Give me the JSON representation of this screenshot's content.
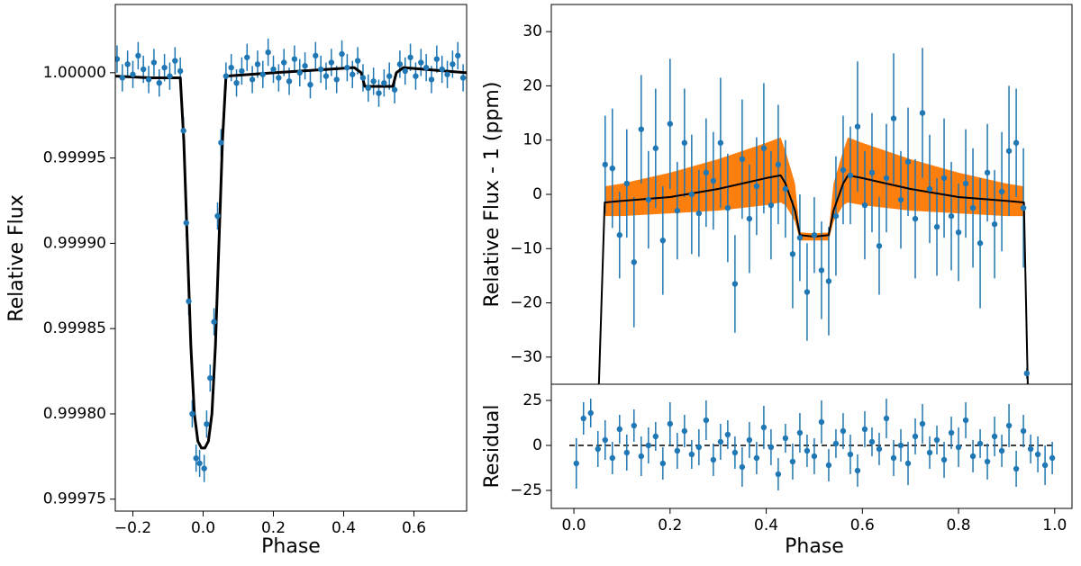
{
  "chart_data": [
    {
      "type": "errorbar",
      "xlabel": "Phase",
      "ylabel": "Relative Flux",
      "xlim": [
        -0.25,
        0.75
      ],
      "ylim": [
        0.999743,
        1.00004
      ],
      "xticks": [
        {
          "value": -0.2,
          "label": "−0.2"
        },
        {
          "value": 0,
          "label": "0.0"
        },
        0.2,
        0.4,
        0.6
      ],
      "yticks": [
        0.99975,
        {
          "value": 0.9998,
          "label": "0.99980"
        },
        0.99985,
        {
          "value": 0.9999,
          "label": "0.99990"
        },
        0.99995,
        {
          "value": 1,
          "label": "1.00000"
        }
      ],
      "color": "#1f77b4",
      "model_color": "#000000",
      "points": {
        "x": [
          -0.245,
          -0.23,
          -0.215,
          -0.2,
          -0.185,
          -0.17,
          -0.155,
          -0.14,
          -0.125,
          -0.11,
          -0.095,
          -0.08,
          -0.065,
          -0.056,
          -0.048,
          -0.041,
          -0.031,
          -0.02,
          -0.01,
          0.003,
          0.01,
          0.02,
          0.031,
          0.041,
          0.051,
          0.065,
          0.08,
          0.095,
          0.11,
          0.125,
          0.14,
          0.155,
          0.17,
          0.185,
          0.2,
          0.215,
          0.23,
          0.245,
          0.26,
          0.275,
          0.29,
          0.305,
          0.32,
          0.335,
          0.35,
          0.365,
          0.38,
          0.395,
          0.41,
          0.425,
          0.44,
          0.455,
          0.47,
          0.485,
          0.5,
          0.515,
          0.53,
          0.545,
          0.56,
          0.575,
          0.59,
          0.605,
          0.62,
          0.635,
          0.65,
          0.665,
          0.68,
          0.695,
          0.71,
          0.725,
          0.74
        ],
        "y": [
          1.000008,
          0.999997,
          1.000005,
          0.999999,
          1.00001,
          1.000002,
          0.999996,
          1.000006,
          0.999994,
          1.000003,
          0.999998,
          1.000007,
          1.000001,
          0.999966,
          0.999912,
          0.999866,
          0.9998,
          0.999774,
          0.999771,
          0.999768,
          0.999794,
          0.999821,
          0.999854,
          0.999916,
          0.999959,
          0.999998,
          1.000003,
          0.999994,
          1.000001,
          1.000009,
          0.999996,
          1.000005,
          0.999999,
          1.000012,
          1.000002,
          0.999997,
          1.000006,
          0.999995,
          1.000008,
          1.0,
          1.000004,
          0.999993,
          1.00001,
          1.000002,
          0.999998,
          1.000006,
          0.999996,
          1.000011,
          1.000003,
          0.999999,
          1.000007,
          0.999997,
          0.999991,
          0.999995,
          0.999988,
          0.999994,
          0.999998,
          0.99999,
          1.000005,
          1.000001,
          1.000009,
          0.999998,
          1.000006,
          1.000003,
          0.999996,
          1.000008,
          1.000002,
          0.999999,
          1.000005,
          1.00001,
          0.999997
        ]
      },
      "yerr": 8e-06,
      "model": {
        "x": [
          -0.25,
          -0.15,
          -0.065,
          -0.055,
          -0.045,
          -0.035,
          -0.025,
          -0.015,
          -0.005,
          0,
          0.005,
          0.015,
          0.025,
          0.035,
          0.045,
          0.055,
          0.065,
          0.2,
          0.43,
          0.45,
          0.46,
          0.54,
          0.55,
          0.57,
          0.75
        ],
        "y": [
          0.999998,
          0.999997,
          0.999997,
          0.99996,
          0.9999,
          0.99984,
          0.9998,
          0.999784,
          0.99978,
          0.99978,
          0.99978,
          0.999784,
          0.9998,
          0.99984,
          0.9999,
          0.99996,
          0.999998,
          1.0,
          1.000003,
          1.0,
          0.999992,
          0.999992,
          1.0,
          1.000003,
          1.0
        ]
      }
    },
    {
      "type": "errorbar",
      "ylabel": "Relative Flux - 1 (ppm)",
      "xlim": [
        -0.047,
        1.036
      ],
      "ylim": [
        -35,
        35
      ],
      "yticks": [
        {
          "value": -30,
          "label": "−30"
        },
        {
          "value": -20,
          "label": "−20"
        },
        {
          "value": -10,
          "label": "−10"
        },
        0,
        10,
        20,
        30
      ],
      "color": "#1f77b4",
      "model_color": "#000000",
      "band_color": "#ff7f0e",
      "points": {
        "x": [
          0.065,
          0.08,
          0.095,
          0.11,
          0.125,
          0.14,
          0.155,
          0.17,
          0.185,
          0.2,
          0.215,
          0.23,
          0.245,
          0.26,
          0.275,
          0.29,
          0.305,
          0.32,
          0.335,
          0.35,
          0.365,
          0.38,
          0.395,
          0.41,
          0.425,
          0.44,
          0.455,
          0.47,
          0.485,
          0.5,
          0.515,
          0.53,
          0.545,
          0.56,
          0.575,
          0.59,
          0.605,
          0.62,
          0.635,
          0.65,
          0.665,
          0.68,
          0.695,
          0.71,
          0.725,
          0.74,
          0.755,
          0.77,
          0.785,
          0.8,
          0.815,
          0.83,
          0.845,
          0.86,
          0.875,
          0.89,
          0.905,
          0.92,
          0.935,
          0.942
        ],
        "y": [
          5.5,
          4.8,
          -7.5,
          2,
          -12.5,
          12,
          -1,
          8.5,
          -8.5,
          13,
          -3,
          9.5,
          0,
          -3.5,
          4,
          2.5,
          9.5,
          -2.5,
          -16.5,
          6.5,
          -4.5,
          1.5,
          8.5,
          -2,
          5.5,
          1,
          -11,
          -8,
          -18,
          -7.5,
          -14,
          -16,
          -4,
          4.5,
          3.5,
          12.5,
          -2,
          4,
          -9.5,
          3,
          14,
          -1,
          6,
          -4.5,
          15,
          1,
          -6,
          3,
          -4,
          -7,
          2,
          -2.5,
          -9,
          4,
          -5.5,
          0.5,
          8,
          9.5,
          -2.5,
          -33
        ],
        "err": [
          9,
          11,
          8,
          10,
          12,
          10,
          9,
          11,
          10,
          12,
          9,
          10,
          11,
          8,
          10,
          9,
          12,
          10,
          9,
          11,
          10,
          9,
          12,
          10,
          11,
          9,
          10,
          8,
          9,
          7,
          9,
          10,
          11,
          10,
          9,
          12,
          10,
          11,
          9,
          10,
          12,
          9,
          10,
          11,
          12,
          10,
          9,
          11,
          10,
          9,
          10,
          11,
          12,
          9,
          10,
          11,
          12,
          10,
          11,
          1
        ]
      },
      "model": {
        "x": [
          0.052,
          0.064,
          0.1,
          0.2,
          0.3,
          0.4,
          0.43,
          0.44,
          0.46,
          0.47,
          0.5,
          0.53,
          0.54,
          0.56,
          0.57,
          0.6,
          0.7,
          0.8,
          0.9,
          0.936,
          0.944
        ],
        "y": [
          -35,
          -1.5,
          -1.2,
          -0.5,
          1,
          3,
          3.5,
          2,
          -3,
          -7.5,
          -7.8,
          -7.5,
          -3,
          2,
          3.5,
          3,
          1,
          -0.5,
          -1.2,
          -1.5,
          -35
        ]
      },
      "band": {
        "x": [
          0.065,
          0.1,
          0.2,
          0.3,
          0.4,
          0.43,
          0.44,
          0.46,
          0.47,
          0.5,
          0.53,
          0.54,
          0.56,
          0.57,
          0.6,
          0.7,
          0.8,
          0.9,
          0.935
        ],
        "upper": [
          1.5,
          2,
          4,
          6.5,
          9.5,
          10.5,
          8,
          2,
          -7,
          -7.2,
          -7,
          2,
          8,
          10.5,
          9.5,
          6.5,
          4,
          2,
          1.5
        ],
        "lower": [
          -4,
          -4,
          -3.5,
          -3,
          -2,
          -1.5,
          -2,
          -5,
          -8.5,
          -8.5,
          -8.5,
          -5,
          -2,
          -1.5,
          -2,
          -3,
          -3.5,
          -4,
          -4
        ]
      }
    },
    {
      "type": "errorbar",
      "xlabel": "Phase",
      "ylabel": "Residual",
      "xlim": [
        -0.047,
        1.036
      ],
      "ylim": [
        -35,
        34
      ],
      "xticks": [
        {
          "value": 0,
          "label": "0.0"
        },
        0.2,
        0.4,
        0.6,
        0.8,
        {
          "value": 1,
          "label": "1.0"
        }
      ],
      "yticks": [
        {
          "value": -25,
          "label": "−25"
        },
        0,
        25
      ],
      "color": "#1f77b4",
      "zero_line": true,
      "points": {
        "x": [
          0.005,
          0.02,
          0.035,
          0.05,
          0.065,
          0.08,
          0.095,
          0.11,
          0.125,
          0.14,
          0.155,
          0.17,
          0.185,
          0.2,
          0.215,
          0.23,
          0.245,
          0.26,
          0.275,
          0.29,
          0.305,
          0.32,
          0.335,
          0.35,
          0.365,
          0.38,
          0.395,
          0.41,
          0.425,
          0.44,
          0.455,
          0.47,
          0.485,
          0.5,
          0.515,
          0.53,
          0.545,
          0.56,
          0.575,
          0.59,
          0.605,
          0.62,
          0.635,
          0.65,
          0.665,
          0.68,
          0.695,
          0.71,
          0.725,
          0.74,
          0.755,
          0.77,
          0.785,
          0.8,
          0.815,
          0.83,
          0.845,
          0.86,
          0.875,
          0.89,
          0.905,
          0.92,
          0.935,
          0.95,
          0.965,
          0.98,
          0.995
        ],
        "y": [
          -10,
          15,
          18,
          -2,
          3,
          -7,
          9,
          -4,
          11,
          -6,
          0,
          5,
          -10,
          12,
          -3,
          8,
          -5,
          -1,
          14,
          -8,
          2,
          6,
          -4,
          -12,
          3,
          -7,
          10,
          -1,
          -16,
          4,
          -9,
          7,
          -3,
          -6,
          13,
          -11,
          1,
          8,
          -5,
          -14,
          9,
          2,
          -2,
          15,
          -7,
          0,
          -10,
          5,
          12,
          -4,
          3,
          -8,
          7,
          -1,
          14,
          -6,
          1,
          -9,
          5,
          -3,
          11,
          -13,
          8,
          -2,
          -5,
          -11,
          -7
        ],
        "err": [
          14,
          9,
          8,
          10,
          11,
          9,
          8,
          10,
          9,
          11,
          10,
          8,
          9,
          12,
          10,
          9,
          8,
          10,
          11,
          9,
          10,
          8,
          9,
          11,
          10,
          9,
          12,
          10,
          9,
          8,
          10,
          11,
          9,
          10,
          12,
          9,
          8,
          10,
          11,
          9,
          10,
          8,
          9,
          11,
          10,
          9,
          12,
          10,
          11,
          9,
          8,
          10,
          9,
          11,
          10,
          9,
          8,
          10,
          11,
          9,
          12,
          10,
          9,
          8,
          10,
          11,
          9
        ]
      }
    }
  ]
}
